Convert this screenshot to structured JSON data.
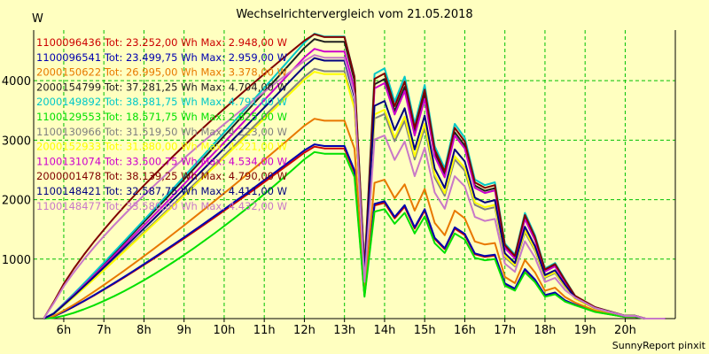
{
  "chart_data": {
    "type": "line",
    "title": "Wechselrichtervergleich vom 21.05.2018",
    "ylabel": "W",
    "xlabel": "",
    "credit": "SunnyReport pinxit",
    "x_tick_labels": [
      "6h",
      "7h",
      "8h",
      "9h",
      "10h",
      "11h",
      "12h",
      "13h",
      "14h",
      "15h",
      "16h",
      "17h",
      "18h",
      "19h",
      "20h"
    ],
    "x_ticks": [
      6,
      7,
      8,
      9,
      10,
      11,
      12,
      13,
      14,
      15,
      16,
      17,
      18,
      19,
      20
    ],
    "y_ticks": [
      1000,
      2000,
      3000,
      4000
    ],
    "xlim": [
      5.25,
      21.25
    ],
    "ylim": [
      0,
      4850
    ],
    "grid": true,
    "grid_color": "#00c000",
    "background": "#ffffc0",
    "legend_position": "top-left",
    "x": [
      5.5,
      5.75,
      6.0,
      6.25,
      6.5,
      6.75,
      7.0,
      7.25,
      7.5,
      7.75,
      8.0,
      8.25,
      8.5,
      8.75,
      9.0,
      9.25,
      9.5,
      9.75,
      10.0,
      10.25,
      10.5,
      10.75,
      11.0,
      11.25,
      11.5,
      11.75,
      12.0,
      12.25,
      12.5,
      12.75,
      13.0,
      13.25,
      13.5,
      13.75,
      14.0,
      14.25,
      14.5,
      14.75,
      15.0,
      15.25,
      15.5,
      15.75,
      16.0,
      16.25,
      16.5,
      16.75,
      17.0,
      17.25,
      17.5,
      17.75,
      18.0,
      18.25,
      18.5,
      18.75,
      19.0,
      19.25,
      19.5,
      19.75,
      20.0,
      20.25,
      20.5,
      20.75,
      21.0
    ],
    "base_profile": [
      0,
      0,
      0.01,
      0.02,
      0.03,
      0.05,
      0.08,
      0.13,
      0.2,
      0.27,
      0.34,
      0.41,
      0.48,
      0.55,
      0.62,
      0.68,
      0.74,
      0.79,
      0.83,
      0.87,
      0.9,
      0.93,
      0.96,
      0.98,
      1.0,
      1.0,
      1.0,
      0.99,
      0.99,
      0.98,
      0.99,
      0.85,
      0.18,
      0.88,
      0.9,
      0.78,
      0.87,
      0.7,
      0.84,
      0.62,
      0.54,
      0.7,
      0.65,
      0.5,
      0.48,
      0.49,
      0.27,
      0.23,
      0.38,
      0.3,
      0.18,
      0.2,
      0.14,
      0.08,
      0.06,
      0.04,
      0.03,
      0.02,
      0.01,
      0.01,
      0,
      0,
      0
    ],
    "series": [
      {
        "label": "1100096436 Tot: 23.252,00 Wh Max: 2.948,00 W",
        "color": "#cc0000",
        "peak": 2890,
        "mode": "slow",
        "midfrac": 0.58
      },
      {
        "label": "1100096541 Tot: 23.499,75 Wh Max: 2.959,00 W",
        "color": "#0000b0",
        "peak": 2930,
        "mode": "slow",
        "midfrac": 0.58
      },
      {
        "label": "2000150622 Tot: 26.995,00 Wh Max: 3.378,00 W",
        "color": "#e87800",
        "peak": 3360,
        "mode": "slow",
        "midfrac": 0.62
      },
      {
        "label": "2000154799 Tot: 37.281,25 Wh Max: 4.704,00 W",
        "color": "#202020",
        "peak": 4700,
        "mode": "normal",
        "midfrac": 0.92
      },
      {
        "label": "2000149892 Tot: 38.381,75 Wh Max: 4.791,00 W",
        "color": "#00c8c8",
        "peak": 4790,
        "mode": "normal",
        "midfrac": 0.96
      },
      {
        "label": "1100129553 Tot: 18.571,75 Wh Max: 2.825,00 W",
        "color": "#00e000",
        "peak": 2800,
        "mode": "lagged",
        "midfrac": 0.55
      },
      {
        "label": "1100130966 Tot: 31.519,50 Wh Max: 4.223,00 W",
        "color": "#808080",
        "peak": 4200,
        "mode": "normal",
        "midfrac": 0.85
      },
      {
        "label": "2000152933 Tot: 31.880,00 Wh Max: 4.221,00 W",
        "color": "#ffff00",
        "peak": 4150,
        "mode": "normal",
        "midfrac": 0.9
      },
      {
        "label": "1100131074 Tot: 33.500,75 Wh Max: 4.534,00 W",
        "color": "#cc00cc",
        "peak": 4534,
        "mode": "normal",
        "midfrac": 0.95
      },
      {
        "label": "2000001478 Tot: 38.139,25 Wh Max: 4.790,00 W",
        "color": "#800000",
        "peak": 4780,
        "mode": "early",
        "midfrac": 0.93
      },
      {
        "label": "1100148421 Tot: 32.587,75 Wh Max: 4.411,00 W",
        "color": "#000080",
        "peak": 4380,
        "mode": "normal",
        "midfrac": 0.88
      },
      {
        "label": "1100148477 Tot: 33.580,00 Wh Max: 4.432,00 W",
        "color": "#c878c8",
        "peak": 4430,
        "mode": "early",
        "midfrac": 0.62
      }
    ]
  }
}
